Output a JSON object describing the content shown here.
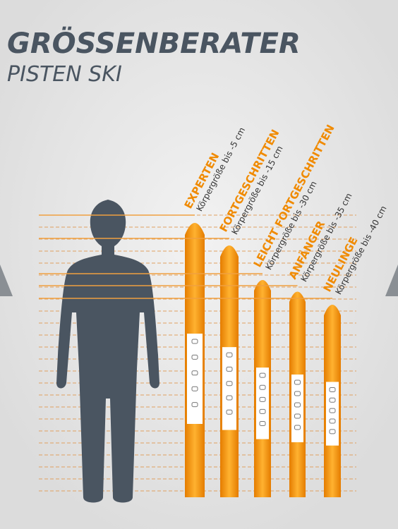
{
  "header": {
    "title": "GRÖSSENBERATER",
    "subtitle": "PISTEN SKI"
  },
  "skis": [
    {
      "level": "EXPERTEN",
      "note": "Körpergröße bis -5 cm"
    },
    {
      "level": "FORTGESCHRITTEN",
      "note": "Körpergröße bis -15 cm"
    },
    {
      "level": "LEICHT FORTGESCHRITTEN",
      "note": "Körpergröße bis -30 cm"
    },
    {
      "level": "ANFÄNGER",
      "note": "Körpergröße bis -35 cm"
    },
    {
      "level": "NEULINGE",
      "note": "Körpergröße bis -40 cm"
    }
  ]
}
